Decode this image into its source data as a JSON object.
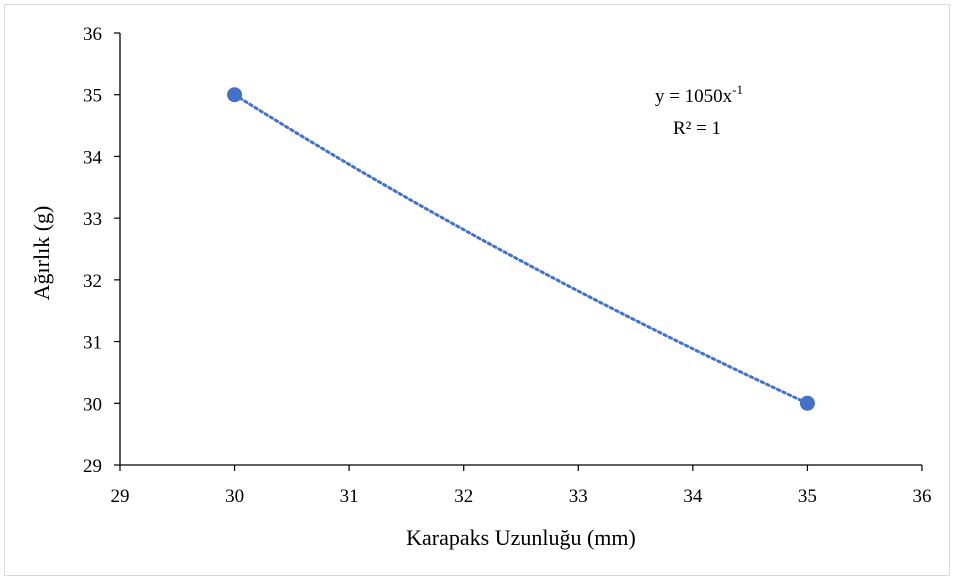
{
  "chart_data": {
    "type": "scatter",
    "title": "",
    "xlabel": "Karapaks Uzunluğu (mm)",
    "ylabel": "Ağırlık (g)",
    "xlim": [
      29,
      36
    ],
    "ylim": [
      29,
      36
    ],
    "xticks": [
      "29",
      "30",
      "31",
      "32",
      "33",
      "34",
      "35",
      "36"
    ],
    "yticks": [
      "29",
      "30",
      "31",
      "32",
      "33",
      "34",
      "35",
      "36"
    ],
    "grid": false,
    "series": [
      {
        "points": [
          {
            "x": 30,
            "y": 35
          },
          {
            "x": 35,
            "y": 30
          }
        ],
        "color": "#4472C4"
      }
    ],
    "trendline": {
      "type": "power",
      "coefficient": 1050,
      "exponent": -1,
      "style": "dotted",
      "color": "#4472C4",
      "equation_prefix": "y = 1050x",
      "equation_exponent": "-1",
      "r_squared_label": "R² = 1"
    }
  }
}
